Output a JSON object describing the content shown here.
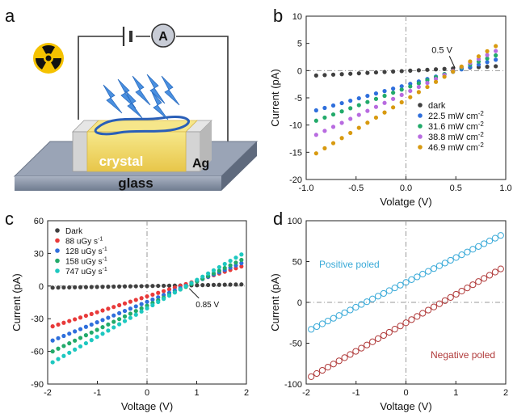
{
  "panel_letters": {
    "a": "a",
    "b": "b",
    "c": "c",
    "d": "d"
  },
  "schematic": {
    "ammeter": "A",
    "crystal_label": "crystal",
    "substrate_label": "glass",
    "electrode_label": "Ag",
    "colors": {
      "substrate": "#8d98aa",
      "crystal": "#f3dc68",
      "electrode": "#d8d8d8",
      "rays": "#4a90e0",
      "radiation_badge": "#f5c200"
    },
    "icons": [
      "radiation-icon",
      "battery-icon",
      "x-ray-arrow-icon"
    ]
  },
  "chart_data": [
    {
      "id": "b",
      "type": "scatter",
      "xlabel": "Volatge (V)",
      "ylabel": "Current (pA)",
      "xlim": [
        -1.0,
        1.0
      ],
      "ylim": [
        -20,
        10
      ],
      "xticks": [
        "-1.0",
        "-0.5",
        "0.0",
        "0.5",
        "1.0"
      ],
      "yticks": [
        "10",
        "5",
        "0",
        "-5",
        "-10",
        "-15",
        "-20"
      ],
      "annotation": "0.5 V",
      "legend_position": "lower-right",
      "series": [
        {
          "name": "dark",
          "color": "#404040",
          "x0": -0.9,
          "x1": 0.9,
          "y0": -0.9,
          "y1": 0.8
        },
        {
          "name": "22.5 mW cm",
          "color": "#2f6fdc",
          "x0": -0.9,
          "x1": 0.9,
          "y0": -7.3,
          "y1": 2.0
        },
        {
          "name": "31.6 mW cm",
          "color": "#22aa6a",
          "x0": -0.9,
          "x1": 0.9,
          "y0": -9.2,
          "y1": 2.8
        },
        {
          "name": "38.8 mW cm",
          "color": "#b86be0",
          "x0": -0.9,
          "x1": 0.9,
          "y0": -11.8,
          "y1": 3.6
        },
        {
          "name": "46.9 mW cm",
          "color": "#d89a10",
          "x0": -0.9,
          "x1": 0.9,
          "y0": -15.2,
          "y1": 4.5
        }
      ],
      "legend_sup": "-2"
    },
    {
      "id": "c",
      "type": "scatter",
      "xlabel": "Voltage (V)",
      "ylabel": "Current (pA)",
      "xlim": [
        -2,
        2
      ],
      "ylim": [
        -90,
        60
      ],
      "xticks": [
        "-2",
        "-1",
        "0",
        "1",
        "2"
      ],
      "yticks": [
        "60",
        "30",
        "0",
        "-30",
        "-60",
        "-90"
      ],
      "annotation": "0.85 V",
      "legend_position": "upper-left",
      "series": [
        {
          "name": "Dark",
          "color": "#404040",
          "x0": -1.9,
          "x1": 1.9,
          "y0": -1.5,
          "y1": 1.5
        },
        {
          "name": "88 uGy s",
          "color": "#e83a3a",
          "x0": -1.9,
          "x1": 1.9,
          "y0": -37,
          "y1": 18
        },
        {
          "name": "128 uGy s",
          "color": "#2f6fdc",
          "x0": -1.9,
          "x1": 1.9,
          "y0": -50,
          "y1": 21
        },
        {
          "name": "158 uGy s",
          "color": "#22aa6a",
          "x0": -1.9,
          "x1": 1.9,
          "y0": -60,
          "y1": 24
        },
        {
          "name": "747 uGy s",
          "color": "#1ec8c0",
          "x0": -1.9,
          "x1": 1.9,
          "y0": -70,
          "y1": 29
        }
      ],
      "legend_sup": "-1"
    },
    {
      "id": "d",
      "type": "scatter",
      "xlabel": "Voltage (V)",
      "ylabel": "Current (pA)",
      "xlim": [
        -2,
        2
      ],
      "ylim": [
        -100,
        100
      ],
      "xticks": [
        "-2",
        "-1",
        "0",
        "1",
        "2"
      ],
      "yticks": [
        "100",
        "50",
        "0",
        "-50",
        "-100"
      ],
      "open_markers": true,
      "series": [
        {
          "name": "Positive poled",
          "color": "#3aaad8",
          "x0": -1.9,
          "x1": 1.9,
          "y0": -33,
          "y1": 82
        },
        {
          "name": "Negative poled",
          "color": "#b03a3a",
          "x0": -1.9,
          "x1": 1.9,
          "y0": -91,
          "y1": 41
        }
      ]
    }
  ]
}
